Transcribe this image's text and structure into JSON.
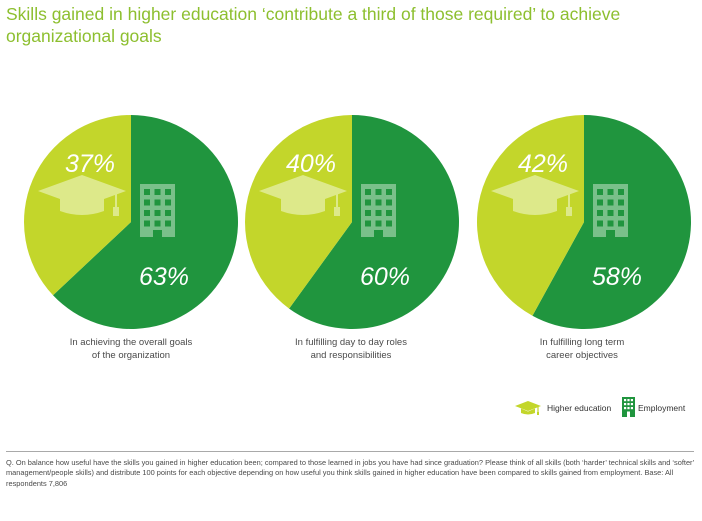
{
  "title": "Skills gained in higher education ‘contribute a third of those required’ to achieve organizational goals",
  "colors": {
    "higher_education": "#c3d62b",
    "employment": "#20953e",
    "icon_light": "#dde98a",
    "icon_dark": "#7ac08a",
    "title": "#8dbf2f"
  },
  "chart_data": [
    {
      "type": "pie",
      "caption": "In achieving the overall goals of the organization",
      "slices": [
        {
          "name": "Higher education",
          "value": 37,
          "label": "37%"
        },
        {
          "name": "Employment",
          "value": 63,
          "label": "63%"
        }
      ]
    },
    {
      "type": "pie",
      "caption": "In fulfilling day to day roles and responsibilities",
      "slices": [
        {
          "name": "Higher education",
          "value": 40,
          "label": "40%"
        },
        {
          "name": "Employment",
          "value": 60,
          "label": "60%"
        }
      ]
    },
    {
      "type": "pie",
      "caption": "In fulfilling long term career objectives",
      "slices": [
        {
          "name": "Higher education",
          "value": 42,
          "label": "42%"
        },
        {
          "name": "Employment",
          "value": 58,
          "label": "58%"
        }
      ]
    }
  ],
  "captions_lines": [
    [
      "In achieving the overall goals",
      "of the organization"
    ],
    [
      "In fulfilling day to day roles",
      "and responsibilities"
    ],
    [
      "In fulfilling long term",
      "career objectives"
    ]
  ],
  "legend": [
    {
      "label": "Higher education",
      "icon": "graduation-cap-icon"
    },
    {
      "label": "Employment",
      "icon": "office-building-icon"
    }
  ],
  "footnote": "Q. On balance how useful have the skills you gained in higher education been; compared to those learned in jobs you have had since graduation? Please think of all skills (both ‘harder’ technical skills and ‘softer’ management/people skills) and distribute 100 points for each objective depending on how useful you think skills gained in higher education have been compared to skills gained from employment. Base: All respondents 7,806"
}
